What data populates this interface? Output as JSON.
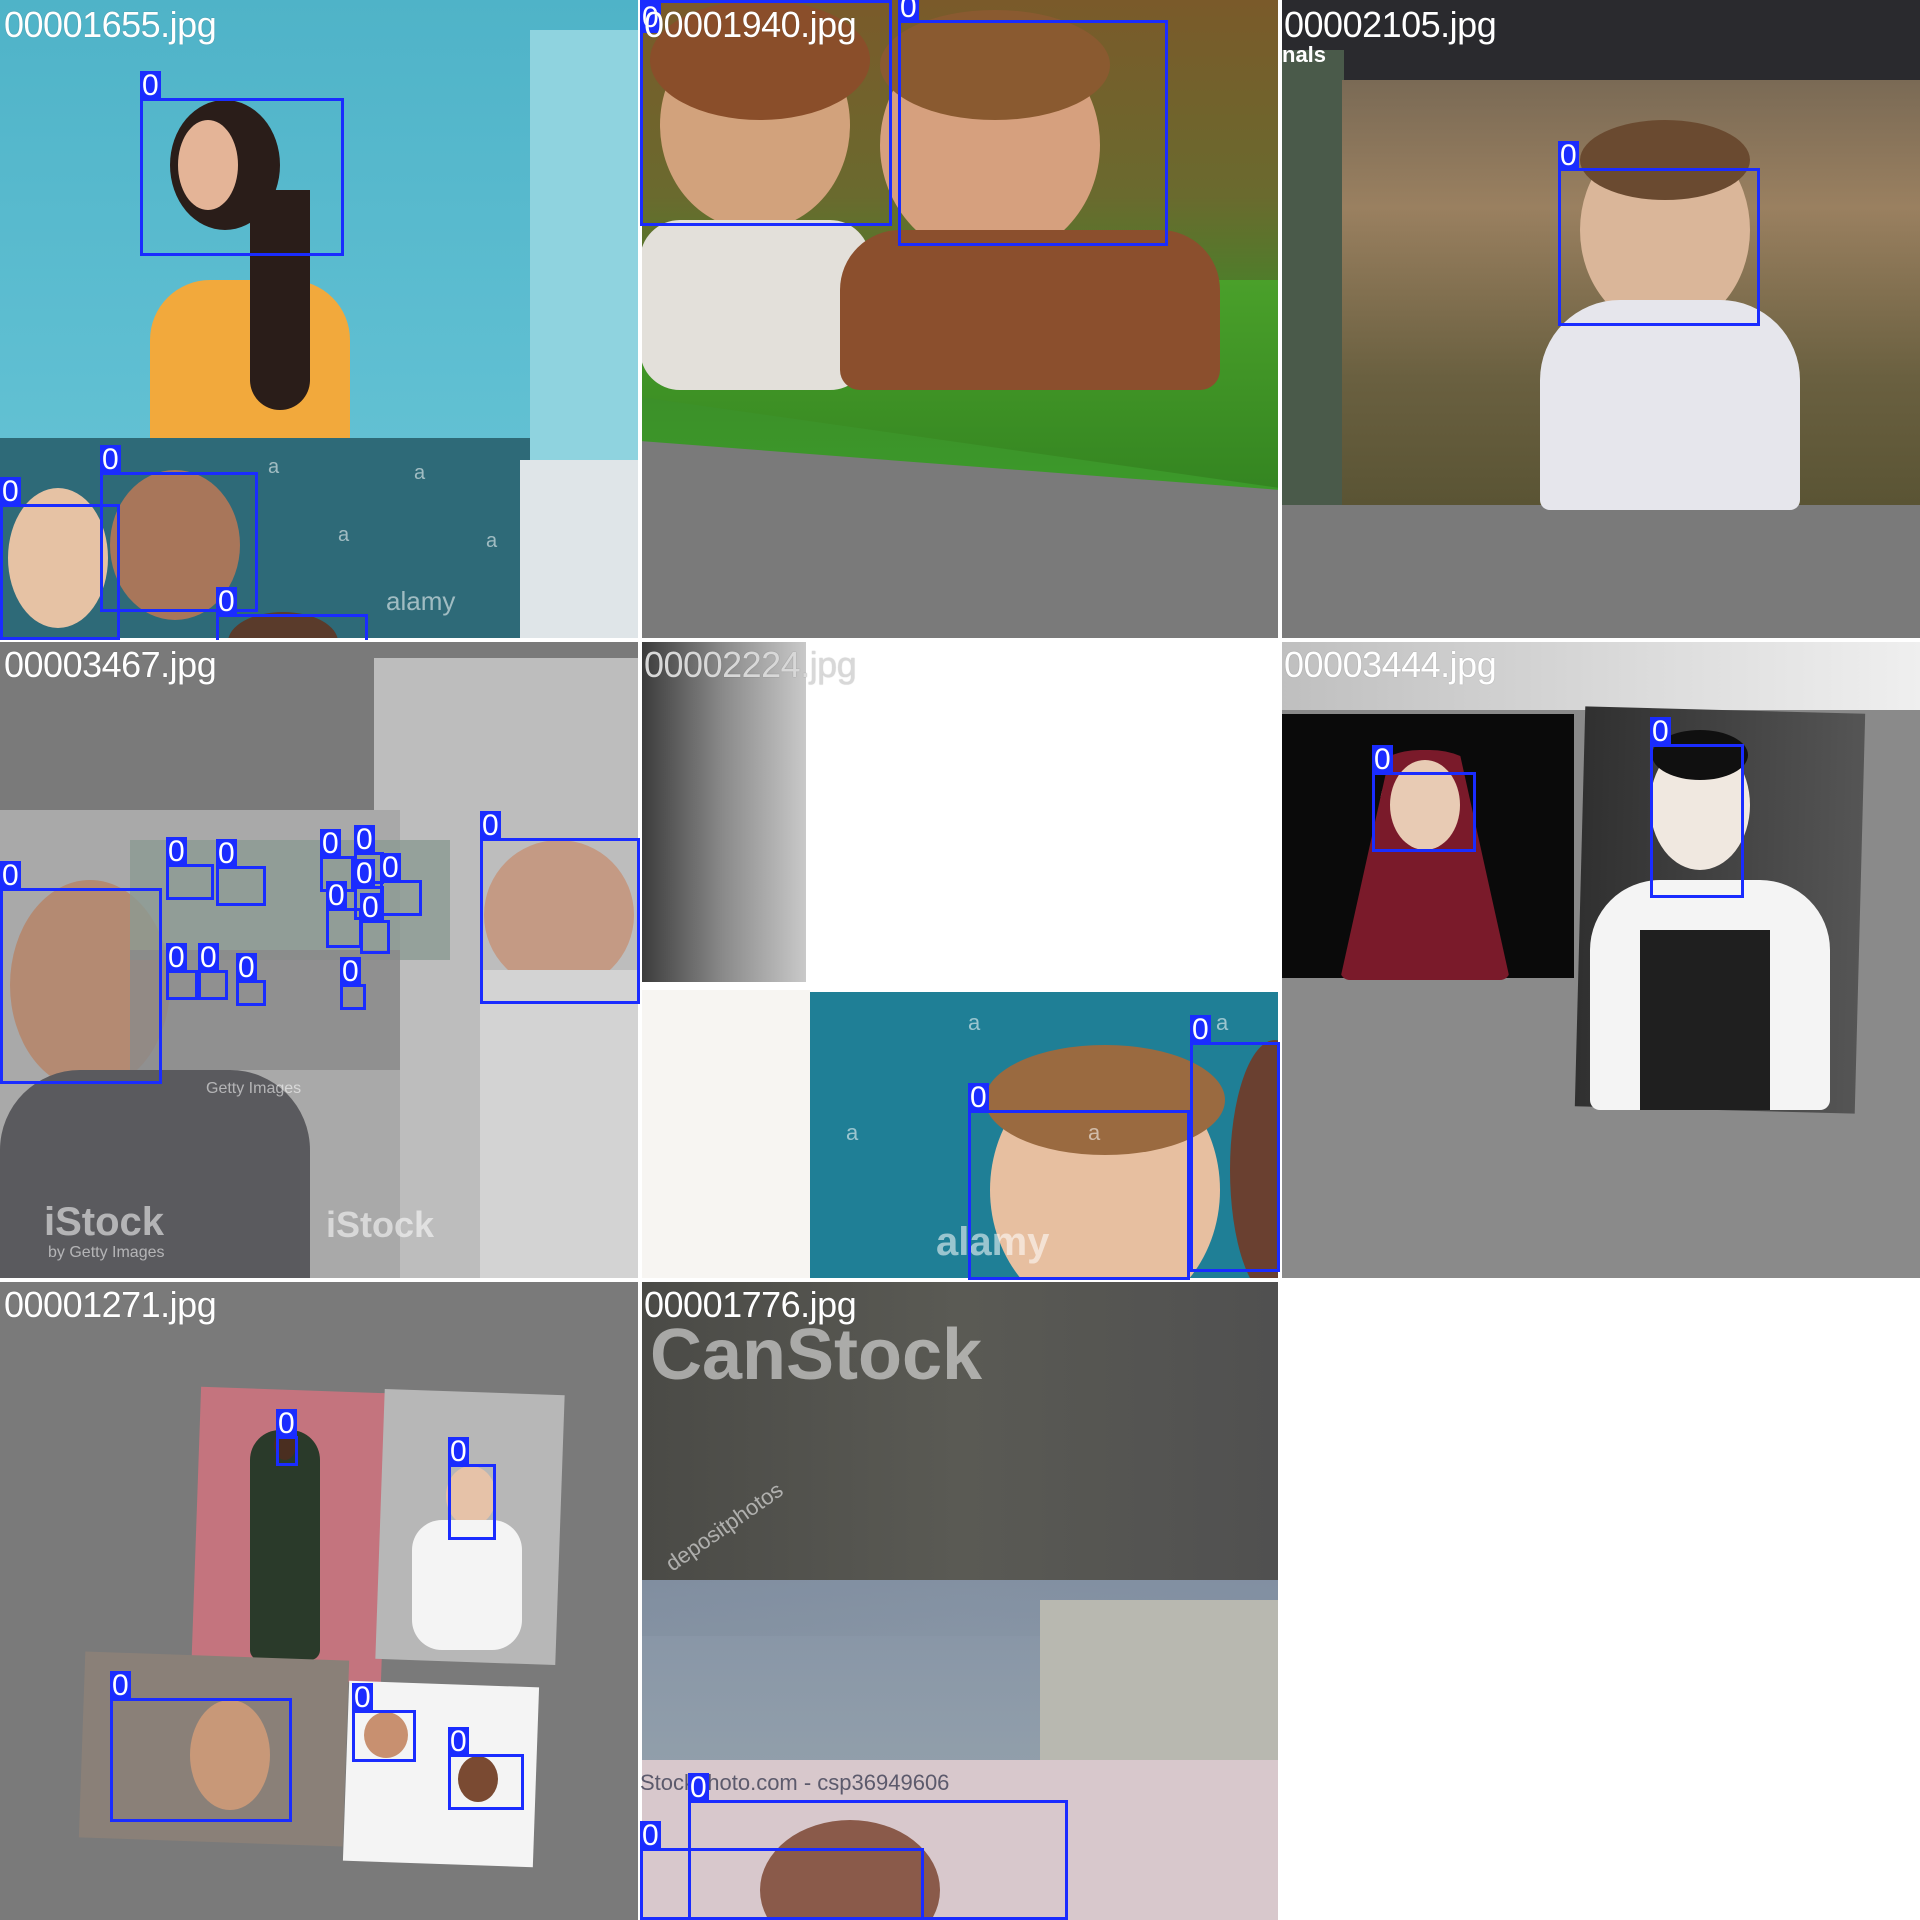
{
  "tiles": [
    {
      "filename": "00001655.jpg",
      "watermarks": [
        "alamy",
        "a",
        "a",
        "a",
        "a"
      ],
      "detections": [
        {
          "label": "0"
        },
        {
          "label": "0"
        },
        {
          "label": "0"
        },
        {
          "label": "0"
        }
      ]
    },
    {
      "filename": "00001940.jpg",
      "watermarks": [],
      "detections": [
        {
          "label": "0"
        },
        {
          "label": "0"
        }
      ]
    },
    {
      "filename": "00002105.jpg",
      "watermarks": [
        "nals"
      ],
      "detections": [
        {
          "label": "0"
        }
      ]
    },
    {
      "filename": "00003467.jpg",
      "watermarks": [
        "iStock",
        "by Getty Images",
        "iStock",
        "Getty Images"
      ],
      "detections": [
        {
          "label": "0"
        },
        {
          "label": "0"
        },
        {
          "label": "0"
        },
        {
          "label": "0"
        },
        {
          "label": "0"
        },
        {
          "label": "0"
        },
        {
          "label": "0"
        },
        {
          "label": "0"
        },
        {
          "label": "0"
        },
        {
          "label": "0"
        },
        {
          "label": "0"
        },
        {
          "label": "0"
        },
        {
          "label": "0"
        },
        {
          "label": "0"
        }
      ]
    },
    {
      "filename": "00002224.jpg",
      "watermarks": [
        "a",
        "a",
        "a",
        "a",
        "alamy"
      ],
      "detections": [
        {
          "label": "0"
        },
        {
          "label": "0"
        }
      ]
    },
    {
      "filename": "00003444.jpg",
      "watermarks": [],
      "detections": [
        {
          "label": "0"
        },
        {
          "label": "0"
        }
      ]
    },
    {
      "filename": "00001271.jpg",
      "watermarks": [],
      "detections": [
        {
          "label": "0"
        },
        {
          "label": "0"
        },
        {
          "label": "0"
        },
        {
          "label": "0"
        },
        {
          "label": "0"
        }
      ]
    },
    {
      "filename": "00001776.jpg",
      "watermarks": [
        "CanStock",
        "depositphotos",
        "Stockphoto.com - csp36949606"
      ],
      "detections": [
        {
          "label": "0"
        },
        {
          "label": "0"
        }
      ]
    }
  ],
  "colors": {
    "box": "#1a2cff",
    "label_text": "#ffffff",
    "filename_text": "#ffffff",
    "letterbox": "#7a7a7a"
  }
}
